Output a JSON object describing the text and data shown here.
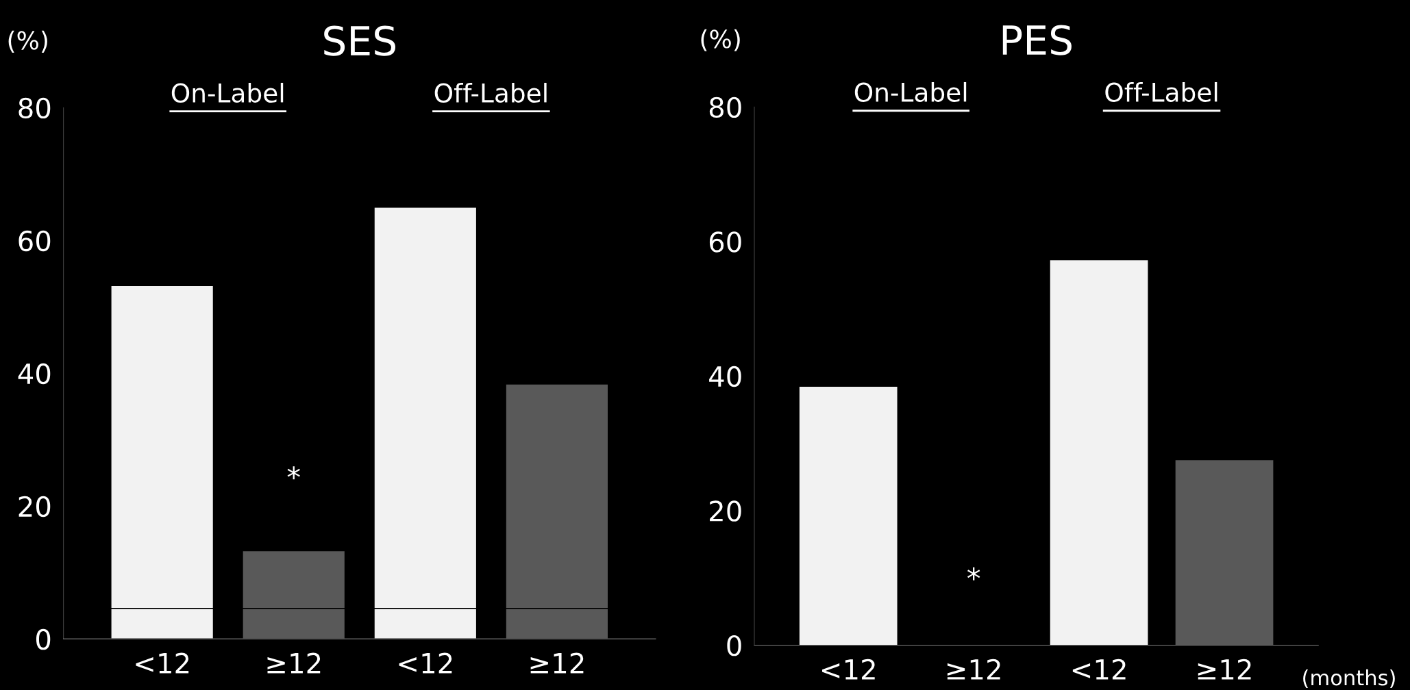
{
  "chart_data": [
    {
      "type": "bar",
      "title": "SES",
      "ylabel": "(%)",
      "categories": [
        "<12",
        "≥12",
        "<12",
        "≥12"
      ],
      "stacked": true,
      "series": [
        {
          "colors": [
            "#f2f2f2",
            "#595959",
            "#f2f2f2",
            "#595959"
          ],
          "values": [
            4.6,
            4.6,
            4.6,
            4.6
          ]
        },
        {
          "colors": [
            "#f2f2f2",
            "#595959",
            "#f2f2f2",
            "#595959"
          ],
          "values": [
            48.6,
            8.7,
            60.4,
            33.8
          ]
        }
      ],
      "ylim": [
        0,
        80
      ],
      "yticks": [
        0,
        20,
        40,
        60,
        80
      ],
      "grid": false,
      "annotations": [
        "On-Label",
        "Off-Label",
        "*"
      ]
    },
    {
      "type": "bar",
      "title": "PES",
      "ylabel": "(%)",
      "categories": [
        "<12",
        "≥12",
        "<12",
        "≥12"
      ],
      "values": [
        38.4,
        0,
        57.2,
        27.5
      ],
      "colors": [
        "#f2f2f2",
        "#595959",
        "#f2f2f2",
        "#595959"
      ],
      "ylim": [
        0,
        80
      ],
      "yticks": [
        0,
        20,
        40,
        60,
        80
      ],
      "grid": false,
      "annotations": [
        "On-Label",
        "Off-Label",
        "*",
        "(months)"
      ]
    }
  ]
}
